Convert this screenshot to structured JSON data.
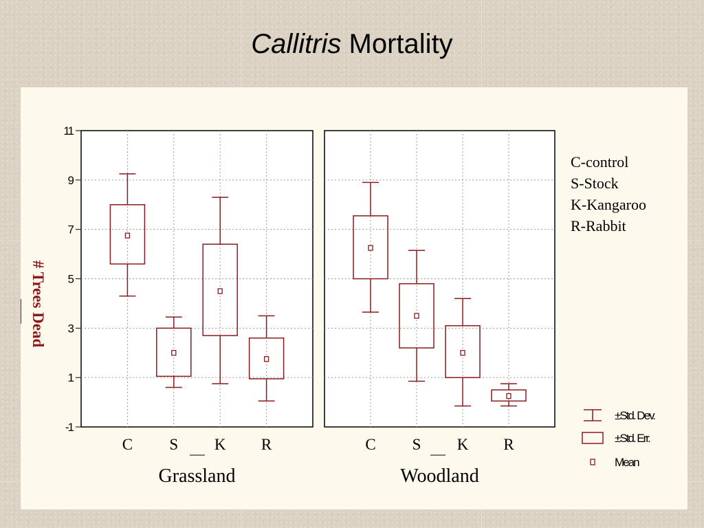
{
  "slide": {
    "title_italic": "Callitris",
    "title_rest": "Mortality"
  },
  "colors": {
    "mark": "#8b1a1a",
    "ylabel": "#8b1a1a",
    "grid": "#9a9a9a"
  },
  "chart_data": {
    "type": "box",
    "title": "Callitris Mortality",
    "ylabel": "# Trees Dead",
    "ylim": [
      -1,
      11
    ],
    "yticks": [
      -1,
      1,
      3,
      5,
      7,
      9,
      11
    ],
    "grid": true,
    "categories": [
      "C",
      "S",
      "K",
      "R"
    ],
    "panels": [
      {
        "name": "Grassland",
        "boxes": [
          {
            "category": "C",
            "mean": 6.75,
            "se_low": 5.6,
            "se_high": 8.0,
            "sd_low": 4.3,
            "sd_high": 9.25
          },
          {
            "category": "S",
            "mean": 2.0,
            "se_low": 1.05,
            "se_high": 3.0,
            "sd_low": 0.6,
            "sd_high": 3.45
          },
          {
            "category": "K",
            "mean": 4.5,
            "se_low": 2.7,
            "se_high": 6.4,
            "sd_low": 0.75,
            "sd_high": 8.3
          },
          {
            "category": "R",
            "mean": 1.75,
            "se_low": 0.95,
            "se_high": 2.6,
            "sd_low": 0.05,
            "sd_high": 3.5
          }
        ]
      },
      {
        "name": "Woodland",
        "boxes": [
          {
            "category": "C",
            "mean": 6.25,
            "se_low": 5.0,
            "se_high": 7.55,
            "sd_low": 3.65,
            "sd_high": 8.9
          },
          {
            "category": "S",
            "mean": 3.5,
            "se_low": 2.2,
            "se_high": 4.8,
            "sd_low": 0.85,
            "sd_high": 6.15
          },
          {
            "category": "K",
            "mean": 2.0,
            "se_low": 1.0,
            "se_high": 3.1,
            "sd_low": -0.15,
            "sd_high": 4.2
          },
          {
            "category": "R",
            "mean": 0.25,
            "se_low": 0.05,
            "se_high": 0.5,
            "sd_low": -0.15,
            "sd_high": 0.75
          }
        ]
      }
    ],
    "key": [
      "C-control",
      "S-Stock",
      "K-Kangaroo",
      "R-Rabbit"
    ],
    "legend": [
      {
        "symbol": "whisker",
        "label": "±Std. Dev."
      },
      {
        "symbol": "box",
        "label": "±Std. Err."
      },
      {
        "symbol": "point",
        "label": "Mean"
      }
    ]
  }
}
